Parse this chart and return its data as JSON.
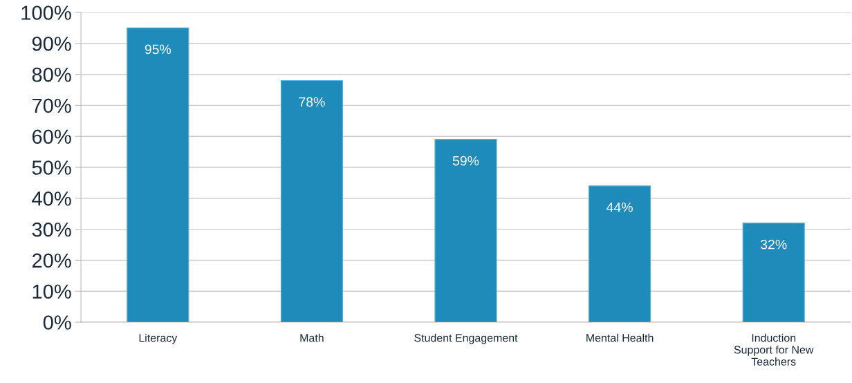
{
  "chart_data": {
    "type": "bar",
    "categories": [
      "Literacy",
      "Math",
      "Student Engagement",
      "Mental Health",
      "Induction\nSupport for New\nTeachers"
    ],
    "values": [
      95,
      78,
      59,
      44,
      32
    ],
    "value_labels": [
      "95%",
      "78%",
      "59%",
      "44%",
      "32%"
    ],
    "color": "#1f8bbb",
    "ylim": [
      0,
      100
    ],
    "yticks": [
      {
        "value": 0,
        "label": "0%"
      },
      {
        "value": 10,
        "label": "10%"
      },
      {
        "value": 20,
        "label": "20%"
      },
      {
        "value": 30,
        "label": "30%"
      },
      {
        "value": 40,
        "label": "40%"
      },
      {
        "value": 50,
        "label": "50%"
      },
      {
        "value": 60,
        "label": "60%"
      },
      {
        "value": 70,
        "label": "70%"
      },
      {
        "value": 80,
        "label": "80%"
      },
      {
        "value": 90,
        "label": "90%"
      },
      {
        "value": 100,
        "label": "100%"
      }
    ],
    "grid": "y",
    "legend": false
  }
}
